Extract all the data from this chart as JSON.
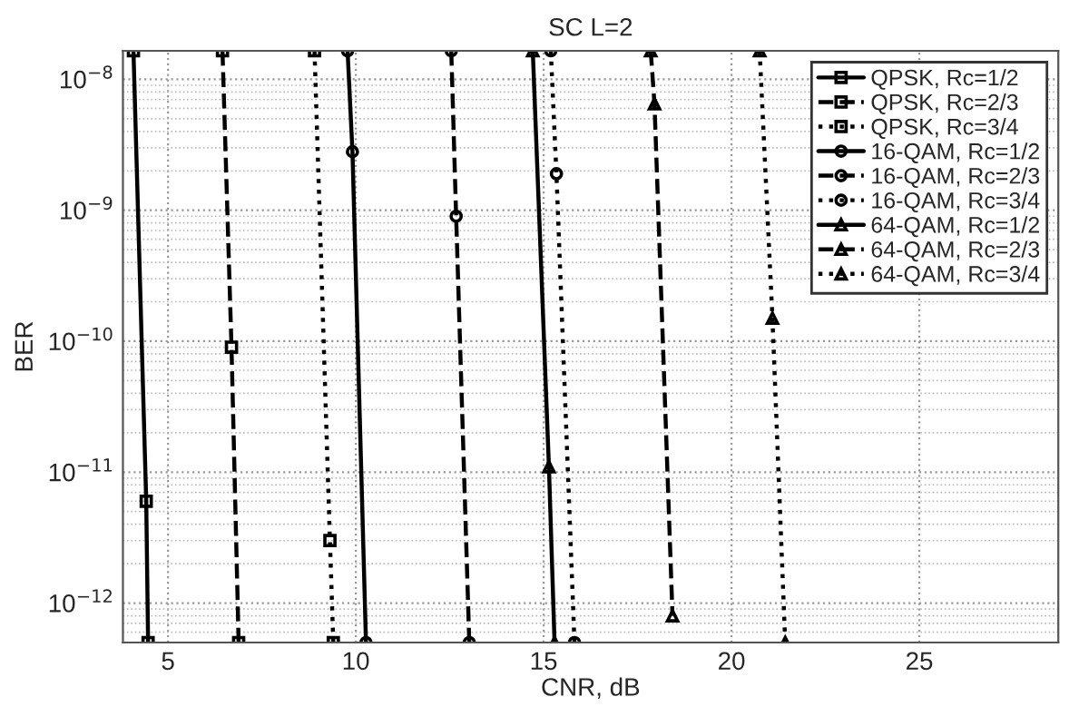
{
  "chart_data": {
    "type": "line",
    "title": "SC L=2",
    "xlabel": "CNR, dB",
    "ylabel": "BER",
    "log": "y",
    "grid": true,
    "legend": "top right",
    "xlim": [
      3.8,
      28.7
    ],
    "xticks": [
      5,
      10,
      15,
      20,
      25
    ],
    "ylim": [
      5e-13,
      1.65e-08
    ],
    "yticks": [
      {
        "value": 1e-12,
        "label": "10$^{−12}$"
      },
      {
        "value": 1e-11,
        "label": "10$^{−11}$"
      },
      {
        "value": 1e-10,
        "label": "10$^{−10}$"
      },
      {
        "value": 1e-09,
        "label": "10$^{−9}$"
      },
      {
        "value": 1e-08,
        "label": "10$^{−8}$"
      }
    ],
    "series": [
      {
        "name": "QPSK, Rc=1/2",
        "color": "#000000",
        "marker": "square",
        "line_style": "solid",
        "x": [
          4.08,
          4.42,
          4.47
        ],
        "values": [
          1.65e-08,
          6e-12,
          5e-13
        ]
      },
      {
        "name": "QPSK, Rc=2/3",
        "color": "#000000",
        "marker": "square",
        "line_style": "dashed",
        "x": [
          6.45,
          6.69,
          6.88
        ],
        "values": [
          1.65e-08,
          9e-11,
          5e-13
        ]
      },
      {
        "name": "QPSK, Rc=3/4",
        "color": "#000000",
        "marker": "square",
        "line_style": "dotted",
        "x": [
          8.9,
          9.31,
          9.4
        ],
        "values": [
          1.65e-08,
          3e-12,
          5e-13
        ]
      },
      {
        "name": "16-QAM, Rc=1/2",
        "color": "#000000",
        "marker": "circle",
        "line_style": "solid",
        "x": [
          9.78,
          9.91,
          10.27
        ],
        "values": [
          1.65e-08,
          2.8e-09,
          5e-13
        ]
      },
      {
        "name": "16-QAM, Rc=2/3",
        "color": "#000000",
        "marker": "circle",
        "line_style": "dashed",
        "x": [
          12.54,
          12.67,
          13.02
        ],
        "values": [
          1.65e-08,
          9e-10,
          5e-13
        ]
      },
      {
        "name": "16-QAM, Rc=3/4",
        "color": "#000000",
        "marker": "circle",
        "line_style": "dotted",
        "x": [
          15.19,
          15.34,
          15.82
        ],
        "values": [
          1.65e-08,
          1.9e-09,
          5e-13
        ]
      },
      {
        "name": "64-QAM, Rc=1/2",
        "color": "#000000",
        "marker": "triangle",
        "line_style": "solid",
        "x": [
          14.71,
          15.14,
          15.29
        ],
        "values": [
          1.65e-08,
          1.1e-11,
          5e-13
        ]
      },
      {
        "name": "64-QAM, Rc=2/3",
        "color": "#000000",
        "marker": "triangle",
        "line_style": "dashed",
        "x": [
          17.85,
          17.95,
          18.43
        ],
        "values": [
          1.65e-08,
          6.5e-09,
          8e-13
        ]
      },
      {
        "name": "64-QAM, Rc=3/4",
        "color": "#000000",
        "marker": "triangle",
        "line_style": "dotted",
        "x": [
          20.75,
          21.09,
          21.43
        ],
        "values": [
          1.65e-08,
          1.5e-10,
          5e-13
        ]
      }
    ]
  }
}
